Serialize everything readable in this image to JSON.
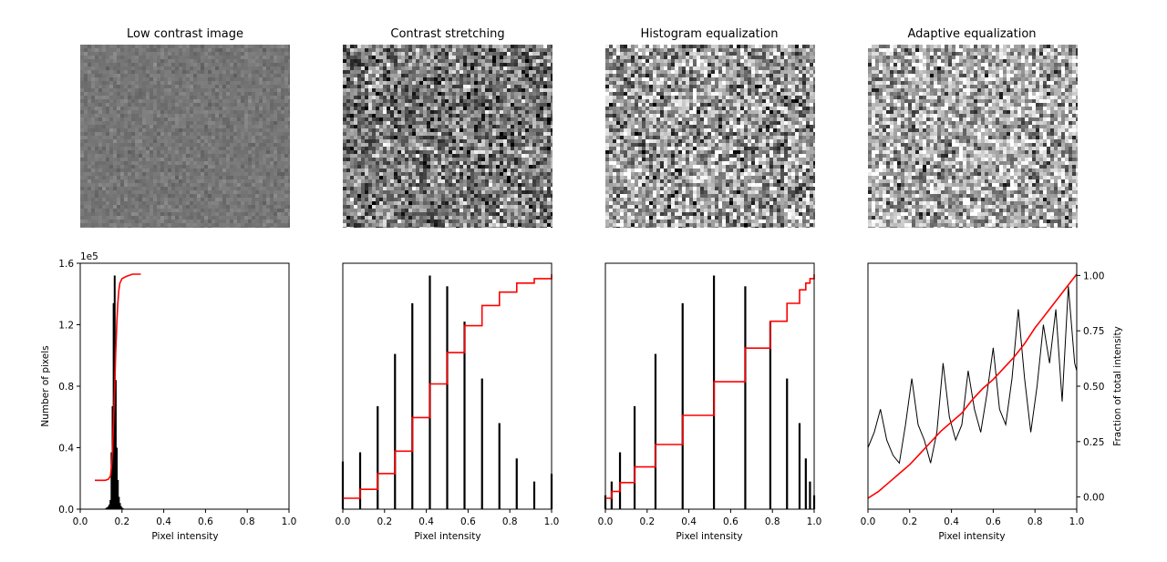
{
  "panel_titles": [
    "Low contrast image",
    "Contrast stretching",
    "Histogram equalization",
    "Adaptive equalization"
  ],
  "image_tones": [
    {
      "base": 118,
      "spread": 55,
      "bias": 0.0
    },
    {
      "base": 120,
      "spread": 330,
      "bias": 0.0
    },
    {
      "base": 135,
      "spread": 380,
      "bias": 0.05
    },
    {
      "base": 140,
      "spread": 360,
      "bias": 0.08
    }
  ],
  "colors": {
    "histogram": "#000000",
    "cdf": "#ff0000"
  },
  "chart_data": [
    {
      "type": "bar",
      "title": "",
      "xlabel": "Pixel intensity",
      "ylabel": "Number of pixels",
      "y_offset_text": "1e5",
      "xlim": [
        0,
        1
      ],
      "ylim": [
        0,
        1.6
      ],
      "x_ticks": [
        "0.0",
        "0.2",
        "0.4",
        "0.6",
        "0.8",
        "1.0"
      ],
      "y_ticks": [
        "0.0",
        "0.4",
        "0.8",
        "1.2",
        "1.6"
      ],
      "y_tick_values": [
        0,
        0.4,
        0.8,
        1.2,
        1.6
      ],
      "histogram": {
        "x": [
          0.12,
          0.125,
          0.13,
          0.135,
          0.14,
          0.145,
          0.15,
          0.155,
          0.16,
          0.165,
          0.17,
          0.175,
          0.18,
          0.185,
          0.19,
          0.195,
          0.2,
          0.205,
          0.21
        ],
        "values": [
          0.003,
          0.008,
          0.012,
          0.018,
          0.03,
          0.06,
          0.37,
          0.67,
          1.34,
          1.52,
          0.84,
          0.4,
          0.19,
          0.08,
          0.04,
          0.02,
          0.01,
          0.005,
          0.002
        ]
      },
      "cdf": {
        "x": [
          0.07,
          0.12,
          0.135,
          0.145,
          0.15,
          0.155,
          0.16,
          0.165,
          0.17,
          0.175,
          0.18,
          0.185,
          0.19,
          0.2,
          0.22,
          0.25,
          0.29
        ],
        "y": [
          0.08,
          0.08,
          0.085,
          0.1,
          0.14,
          0.22,
          0.35,
          0.5,
          0.65,
          0.78,
          0.87,
          0.93,
          0.96,
          0.98,
          0.99,
          1.0,
          1.0
        ]
      }
    },
    {
      "type": "bar",
      "title": "",
      "xlabel": "Pixel intensity",
      "ylabel": "",
      "xlim": [
        0,
        1
      ],
      "ylim": [
        0,
        1.6
      ],
      "x_ticks": [
        "0.0",
        "0.2",
        "0.4",
        "0.6",
        "0.8",
        "1.0"
      ],
      "histogram": {
        "x": [
          0.0,
          0.083,
          0.167,
          0.25,
          0.333,
          0.417,
          0.5,
          0.583,
          0.667,
          0.75,
          0.833,
          0.917,
          1.0
        ],
        "values": [
          0.31,
          0.37,
          0.67,
          1.01,
          1.34,
          1.52,
          1.45,
          1.22,
          0.85,
          0.56,
          0.33,
          0.18,
          0.23
        ]
      },
      "cdf": {
        "x": [
          0.0,
          0.083,
          0.167,
          0.25,
          0.333,
          0.417,
          0.5,
          0.583,
          0.667,
          0.75,
          0.833,
          0.917,
          1.0
        ],
        "y": [
          0.0,
          0.04,
          0.11,
          0.21,
          0.36,
          0.51,
          0.65,
          0.77,
          0.86,
          0.92,
          0.96,
          0.98,
          1.0
        ]
      }
    },
    {
      "type": "bar",
      "title": "",
      "xlabel": "Pixel intensity",
      "ylabel": "",
      "xlim": [
        0,
        1
      ],
      "ylim": [
        0,
        1.6
      ],
      "x_ticks": [
        "0.0",
        "0.2",
        "0.4",
        "0.6",
        "0.8",
        "1.0"
      ],
      "histogram": {
        "x": [
          0.0,
          0.03,
          0.07,
          0.14,
          0.24,
          0.37,
          0.52,
          0.67,
          0.79,
          0.87,
          0.93,
          0.96,
          0.98,
          1.0
        ],
        "values": [
          0.09,
          0.18,
          0.37,
          0.67,
          1.01,
          1.34,
          1.52,
          1.45,
          1.22,
          0.85,
          0.56,
          0.33,
          0.18,
          0.09
        ]
      },
      "cdf": {
        "x": [
          0.0,
          0.03,
          0.07,
          0.14,
          0.24,
          0.37,
          0.52,
          0.67,
          0.79,
          0.87,
          0.93,
          0.96,
          0.98,
          1.0
        ],
        "y": [
          0.0,
          0.03,
          0.07,
          0.14,
          0.24,
          0.37,
          0.52,
          0.67,
          0.79,
          0.87,
          0.93,
          0.96,
          0.98,
          1.0
        ]
      }
    },
    {
      "type": "line",
      "title": "",
      "xlabel": "Pixel intensity",
      "ylabel": "",
      "right_ylabel": "Fraction of total intensity",
      "xlim": [
        0,
        1
      ],
      "ylim": [
        0,
        1.6
      ],
      "x_ticks": [
        "0.0",
        "0.2",
        "0.4",
        "0.6",
        "0.8",
        "1.0"
      ],
      "right_ticks": [
        "0.00",
        "0.25",
        "0.50",
        "0.75",
        "1.00"
      ],
      "right_tick_values": [
        0,
        0.25,
        0.5,
        0.75,
        1.0
      ],
      "right_ylim": [
        -0.055,
        1.055
      ],
      "histogram_profile": {
        "x": [
          0.0,
          0.03,
          0.06,
          0.09,
          0.12,
          0.15,
          0.18,
          0.21,
          0.24,
          0.27,
          0.3,
          0.33,
          0.36,
          0.39,
          0.42,
          0.45,
          0.48,
          0.51,
          0.54,
          0.57,
          0.6,
          0.63,
          0.66,
          0.69,
          0.72,
          0.75,
          0.78,
          0.81,
          0.84,
          0.87,
          0.9,
          0.93,
          0.96,
          0.99,
          1.0
        ],
        "values": [
          0.4,
          0.5,
          0.65,
          0.45,
          0.35,
          0.3,
          0.55,
          0.85,
          0.55,
          0.45,
          0.3,
          0.5,
          0.95,
          0.6,
          0.45,
          0.55,
          0.9,
          0.65,
          0.5,
          0.75,
          1.05,
          0.65,
          0.55,
          0.85,
          1.3,
          0.85,
          0.5,
          0.8,
          1.2,
          0.95,
          1.3,
          0.7,
          1.45,
          0.95,
          0.9
        ]
      },
      "cdf": {
        "x": [
          0.0,
          0.05,
          0.1,
          0.15,
          0.2,
          0.25,
          0.3,
          0.35,
          0.4,
          0.45,
          0.5,
          0.55,
          0.6,
          0.65,
          0.7,
          0.75,
          0.8,
          0.85,
          0.9,
          0.95,
          1.0
        ],
        "y": [
          0.0,
          0.03,
          0.07,
          0.11,
          0.15,
          0.2,
          0.25,
          0.3,
          0.34,
          0.38,
          0.44,
          0.49,
          0.53,
          0.58,
          0.63,
          0.69,
          0.76,
          0.82,
          0.88,
          0.94,
          1.0
        ]
      }
    }
  ]
}
